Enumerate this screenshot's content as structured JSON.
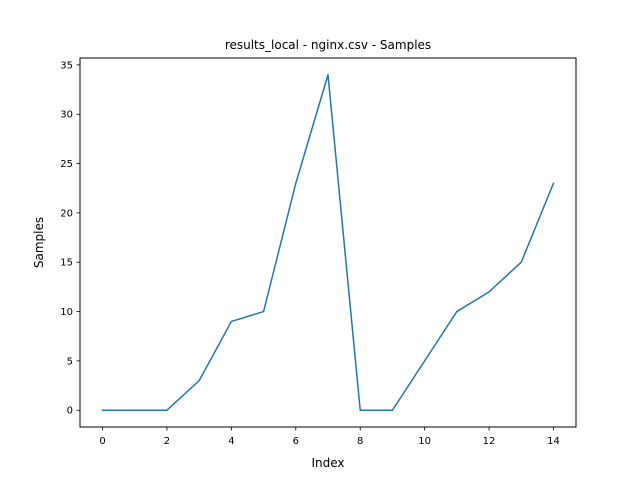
{
  "chart_data": {
    "type": "line",
    "title": "results_local - nginx.csv - Samples",
    "xlabel": "Index",
    "ylabel": "Samples",
    "xlim": [
      -0.7,
      14.7
    ],
    "ylim": [
      -1.7,
      35.7
    ],
    "xticks": [
      0,
      2,
      4,
      6,
      8,
      10,
      12,
      14
    ],
    "yticks": [
      0,
      5,
      10,
      15,
      20,
      25,
      30,
      35
    ],
    "grid": false,
    "series": [
      {
        "x": [
          0,
          1,
          2,
          3,
          4,
          5,
          6,
          7,
          8,
          9,
          10,
          11,
          12,
          13,
          14
        ],
        "y": [
          0,
          0,
          0,
          3,
          9,
          10,
          23,
          34,
          0,
          0,
          5,
          10,
          12,
          15,
          23
        ],
        "color": "#1f77b4"
      }
    ]
  }
}
